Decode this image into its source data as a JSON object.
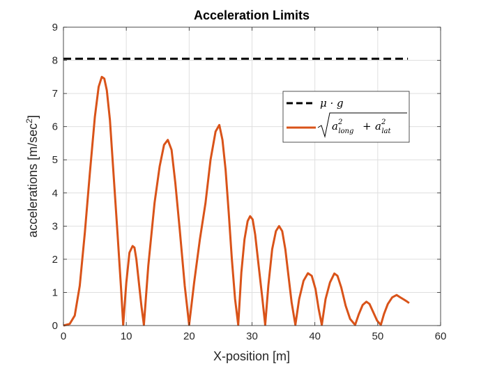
{
  "chart_data": {
    "type": "line",
    "title": "Acceleration Limits",
    "xlabel": "X-position [m]",
    "ylabel": "accelerations [m/sec",
    "ylabel_superscript": "2",
    "ylabel_close": "]",
    "xlim": [
      0,
      60
    ],
    "ylim": [
      0,
      9
    ],
    "xticks": [
      0,
      10,
      20,
      30,
      40,
      50,
      60
    ],
    "yticks": [
      0,
      1,
      2,
      3,
      4,
      5,
      6,
      7,
      8,
      9
    ],
    "grid": true,
    "legend_position": "upper-right",
    "series": [
      {
        "name": "μ · g",
        "style": "dashed",
        "color": "#000000",
        "x": [
          0,
          54.8
        ],
        "y": [
          8.05,
          8.05
        ]
      },
      {
        "name": "sqrt(a_long^2 + a_lat^2)",
        "style": "solid",
        "color": "#D95319",
        "x": [
          0,
          1.0,
          1.8,
          2.6,
          3.4,
          4.2,
          5.0,
          5.6,
          6.1,
          6.5,
          6.9,
          7.4,
          8.0,
          8.6,
          9.2,
          9.5,
          10.0,
          10.5,
          11.0,
          11.3,
          11.6,
          12.0,
          12.4,
          12.8,
          13.5,
          14.5,
          15.3,
          16.0,
          16.6,
          17.2,
          17.8,
          18.5,
          19.3,
          20.0,
          20.8,
          21.7,
          22.6,
          23.4,
          24.2,
          24.8,
          25.3,
          25.8,
          26.3,
          26.8,
          27.3,
          27.8,
          28.3,
          28.8,
          29.3,
          29.7,
          30.1,
          30.5,
          31.0,
          31.6,
          32.1,
          32.6,
          33.2,
          33.8,
          34.3,
          34.8,
          35.3,
          35.8,
          36.3,
          36.9,
          37.5,
          38.2,
          38.9,
          39.5,
          40.1,
          40.6,
          41.1,
          41.7,
          42.4,
          43.1,
          43.6,
          44.2,
          44.9,
          45.6,
          46.4,
          47.0,
          47.6,
          48.2,
          48.7,
          49.3,
          49.9,
          50.5,
          51.0,
          51.6,
          52.3,
          53.0,
          53.6,
          54.2,
          54.7,
          55.0
        ],
        "y": [
          0.0,
          0.05,
          0.3,
          1.2,
          2.8,
          4.6,
          6.3,
          7.2,
          7.5,
          7.45,
          7.1,
          6.2,
          4.5,
          2.8,
          1.0,
          0.02,
          1.3,
          2.2,
          2.4,
          2.35,
          2.0,
          1.3,
          0.6,
          0.02,
          1.8,
          3.7,
          4.8,
          5.45,
          5.6,
          5.3,
          4.3,
          2.9,
          1.2,
          0.02,
          1.3,
          2.6,
          3.7,
          5.0,
          5.85,
          6.05,
          5.6,
          4.7,
          3.4,
          2.0,
          0.8,
          0.02,
          1.6,
          2.6,
          3.15,
          3.3,
          3.2,
          2.75,
          1.9,
          0.9,
          0.02,
          1.2,
          2.3,
          2.85,
          3.0,
          2.85,
          2.3,
          1.5,
          0.7,
          0.02,
          0.8,
          1.35,
          1.58,
          1.5,
          1.1,
          0.5,
          0.02,
          0.8,
          1.3,
          1.57,
          1.5,
          1.15,
          0.6,
          0.2,
          0.02,
          0.35,
          0.62,
          0.72,
          0.65,
          0.4,
          0.15,
          0.02,
          0.35,
          0.65,
          0.85,
          0.92,
          0.85,
          0.78,
          0.72,
          0.68
        ]
      }
    ]
  }
}
